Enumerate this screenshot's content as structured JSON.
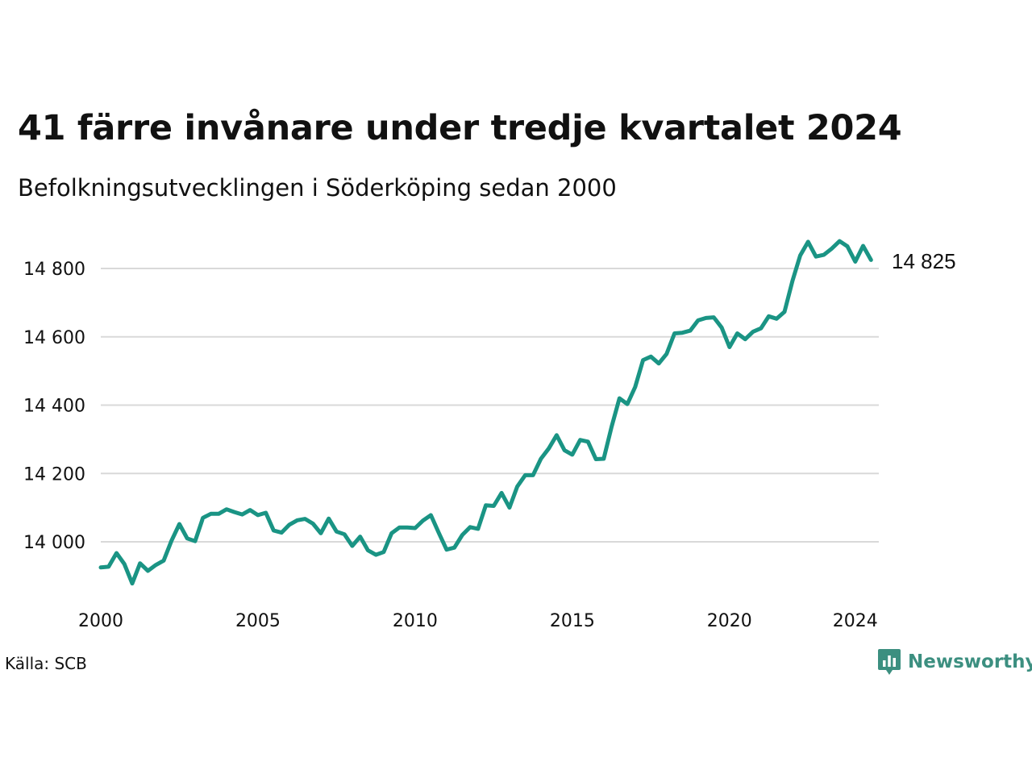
{
  "header": {
    "title": "41 färre invånare under tredje kvartalet 2024",
    "subtitle": "Befolkningsutvecklingen i Söderköping sedan 2000"
  },
  "footer": {
    "source": "Källa: SCB",
    "brand": "Newsworthy",
    "brand_icon": "bar-chart-badge-icon"
  },
  "colors": {
    "line": "#1a9484",
    "grid": "#d9d9d9",
    "brand": "#3c8f80"
  },
  "chart_data": {
    "type": "line",
    "title": "41 färre invånare under tredje kvartalet 2024",
    "subtitle": "Befolkningsutvecklingen i Söderköping sedan 2000",
    "xlabel": "",
    "ylabel": "",
    "x_ticks": [
      2000,
      2005,
      2010,
      2015,
      2020,
      2024
    ],
    "x_tick_labels": [
      "2000",
      "2005",
      "2010",
      "2015",
      "2020",
      "2024"
    ],
    "y_ticks": [
      14000,
      14200,
      14400,
      14600,
      14800
    ],
    "y_tick_labels": [
      "14 000",
      "14 200",
      "14 400",
      "14 600",
      "14 800"
    ],
    "xlim": [
      2000,
      2024.75
    ],
    "ylim": [
      13870,
      14890
    ],
    "grid": "horizontal",
    "end_label": "14 825",
    "series": [
      {
        "x": [
          2000.0,
          2000.25,
          2000.5,
          2000.75,
          2001.0,
          2001.25,
          2001.5,
          2001.75,
          2002.0,
          2002.25,
          2002.5,
          2002.75,
          2003.0,
          2003.25,
          2003.5,
          2003.75,
          2004.0,
          2004.25,
          2004.5,
          2004.75,
          2005.0,
          2005.25,
          2005.5,
          2005.75,
          2006.0,
          2006.25,
          2006.5,
          2006.75,
          2007.0,
          2007.25,
          2007.5,
          2007.75,
          2008.0,
          2008.25,
          2008.5,
          2008.75,
          2009.0,
          2009.25,
          2009.5,
          2009.75,
          2010.0,
          2010.25,
          2010.5,
          2010.75,
          2011.0,
          2011.25,
          2011.5,
          2011.75,
          2012.0,
          2012.25,
          2012.5,
          2012.75,
          2013.0,
          2013.25,
          2013.5,
          2013.75,
          2014.0,
          2014.25,
          2014.5,
          2014.75,
          2015.0,
          2015.25,
          2015.5,
          2015.75,
          2016.0,
          2016.25,
          2016.5,
          2016.75,
          2017.0,
          2017.25,
          2017.5,
          2017.75,
          2018.0,
          2018.25,
          2018.5,
          2018.75,
          2019.0,
          2019.25,
          2019.5,
          2019.75,
          2020.0,
          2020.25,
          2020.5,
          2020.75,
          2021.0,
          2021.25,
          2021.5,
          2021.75,
          2022.0,
          2022.25,
          2022.5,
          2022.75,
          2023.0,
          2023.25,
          2023.5,
          2023.75,
          2024.0,
          2024.25,
          2024.5
        ],
        "values": [
          13925,
          13927,
          13967,
          13935,
          13878,
          13937,
          13915,
          13932,
          13945,
          14003,
          14052,
          14010,
          14002,
          14070,
          14082,
          14082,
          14095,
          14087,
          14080,
          14093,
          14078,
          14085,
          14033,
          14027,
          14050,
          14063,
          14067,
          14053,
          14025,
          14068,
          14030,
          14022,
          13988,
          14015,
          13975,
          13962,
          13970,
          14025,
          14042,
          14042,
          14040,
          14062,
          14078,
          14027,
          13977,
          13983,
          14020,
          14043,
          14038,
          14107,
          14105,
          14143,
          14100,
          14162,
          14195,
          14195,
          14243,
          14273,
          14312,
          14268,
          14255,
          14298,
          14293,
          14242,
          14243,
          14337,
          14420,
          14403,
          14453,
          14532,
          14542,
          14522,
          14550,
          14610,
          14612,
          14618,
          14648,
          14655,
          14657,
          14627,
          14570,
          14610,
          14593,
          14615,
          14625,
          14660,
          14653,
          14673,
          14763,
          14838,
          14878,
          14835,
          14840,
          14858,
          14880,
          14865,
          14820,
          14866,
          14825
        ]
      }
    ]
  }
}
